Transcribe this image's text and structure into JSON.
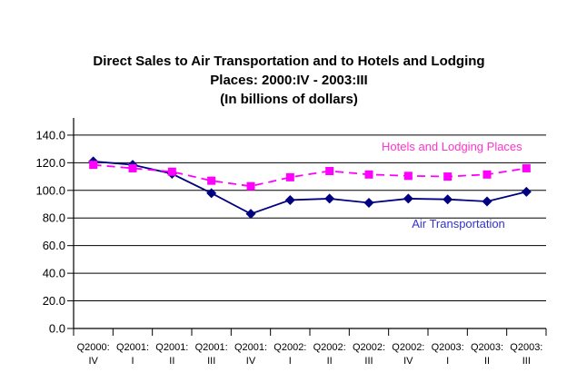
{
  "page": {
    "background": "#FFFFFF"
  },
  "chart_data": {
    "type": "line",
    "title_lines": [
      "Direct Sales to Air Transportation and to Hotels and Lodging",
      "Places:  2000:IV - 2003:III",
      "(In billions of dollars)"
    ],
    "categories": [
      "2000:IV",
      "2001:I",
      "2001:II",
      "2001:III",
      "2001:IV",
      "2002:I",
      "2002:II",
      "2002:III",
      "2002:IV",
      "2003:I",
      "2003:II",
      "2003:III"
    ],
    "x_tick_labels": [
      [
        "Q2000:",
        "IV"
      ],
      [
        "Q2001:",
        "I"
      ],
      [
        "Q2001:",
        "II"
      ],
      [
        "Q2001:",
        "III"
      ],
      [
        "Q2001:",
        "IV"
      ],
      [
        "Q2002:",
        "I"
      ],
      [
        "Q2002:",
        "II"
      ],
      [
        "Q2002:",
        "III"
      ],
      [
        "Q2002:",
        "IV"
      ],
      [
        "Q2003:",
        "I"
      ],
      [
        "Q2003:",
        "II"
      ],
      [
        "Q2003:",
        "III"
      ]
    ],
    "series": [
      {
        "name": "Air Transportation",
        "color": "#000080",
        "label_color": "#3333CC",
        "marker": "diamond",
        "line_style": "solid",
        "values": [
          121,
          118.5,
          112,
          98,
          83,
          93,
          94,
          91,
          94,
          93.5,
          92,
          99
        ]
      },
      {
        "name": "Hotels and Lodging Places",
        "color": "#FF00FF",
        "label_color": "#FF33CC",
        "marker": "square",
        "line_style": "dashed",
        "values": [
          118.5,
          116,
          113.5,
          107,
          103,
          109.5,
          114,
          111.5,
          110.5,
          110,
          111.5,
          116
        ]
      }
    ],
    "y_axis": {
      "min": 0,
      "max": 140,
      "step": 20,
      "tick_labels": [
        "0.0",
        "20.0",
        "40.0",
        "60.0",
        "80.0",
        "100.0",
        "120.0",
        "140.0"
      ]
    },
    "grid": true,
    "legend_position": "inline-labels"
  }
}
